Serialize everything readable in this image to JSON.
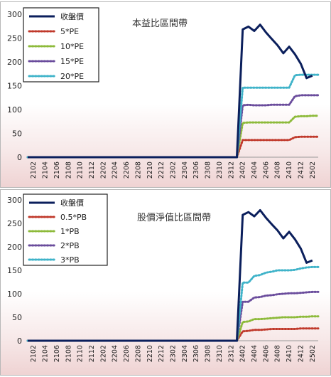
{
  "charts": [
    {
      "id": "top",
      "legend_entries": [
        "收盤價",
        "5*PE",
        "10*PE",
        "15*PE",
        "20*PE"
      ]
    },
    {
      "id": "bottom",
      "legend_entries": [
        "收盤價",
        "0.5*PB",
        "1*PB",
        "2*PB",
        "3*PB"
      ]
    }
  ],
  "chart_data": [
    {
      "type": "line",
      "title": "本益比區間帶",
      "ylim": [
        0,
        300
      ],
      "yticks": [
        0,
        50,
        100,
        150,
        200,
        250,
        300
      ],
      "grid": false,
      "legend_position": "top-left",
      "x_tick_labels": [
        "2102",
        "2104",
        "2106",
        "2108",
        "2110",
        "2112",
        "2202",
        "2204",
        "2206",
        "2208",
        "2210",
        "2212",
        "2302",
        "2304",
        "2306",
        "2308",
        "2310",
        "2312",
        "2402",
        "2404",
        "2406",
        "2408",
        "2410",
        "2412",
        "2502"
      ],
      "x": [
        "2101",
        "2102",
        "2103",
        "2104",
        "2105",
        "2106",
        "2107",
        "2108",
        "2109",
        "2110",
        "2111",
        "2112",
        "2201",
        "2202",
        "2203",
        "2204",
        "2205",
        "2206",
        "2207",
        "2208",
        "2209",
        "2210",
        "2211",
        "2212",
        "2301",
        "2302",
        "2303",
        "2304",
        "2305",
        "2306",
        "2307",
        "2308",
        "2309",
        "2310",
        "2311",
        "2312",
        "2401",
        "2402",
        "2403",
        "2404",
        "2405",
        "2406",
        "2407",
        "2408",
        "2409",
        "2410",
        "2411",
        "2412",
        "2501",
        "2502",
        "2503"
      ],
      "series": [
        {
          "name": "收盤價",
          "color": "#0b1f5c",
          "style": "solid",
          "values": [
            0,
            0,
            0,
            0,
            0,
            0,
            0,
            0,
            0,
            0,
            0,
            0,
            0,
            0,
            0,
            0,
            0,
            0,
            0,
            0,
            0,
            0,
            0,
            0,
            0,
            0,
            0,
            0,
            0,
            0,
            0,
            0,
            0,
            0,
            0,
            0,
            0,
            268,
            274,
            265,
            278,
            262,
            248,
            235,
            218,
            232,
            216,
            196,
            166,
            171,
            null
          ]
        },
        {
          "name": "5*PE",
          "color": "#c0392b",
          "style": "dotted",
          "values": [
            0,
            0,
            0,
            0,
            0,
            0,
            0,
            0,
            0,
            0,
            0,
            0,
            0,
            0,
            0,
            0,
            0,
            0,
            0,
            0,
            0,
            0,
            0,
            0,
            0,
            0,
            0,
            0,
            0,
            0,
            0,
            0,
            0,
            0,
            0,
            0,
            0,
            36,
            36,
            36,
            36,
            36,
            36,
            36,
            36,
            36,
            42,
            43,
            43,
            43,
            43
          ]
        },
        {
          "name": "10*PE",
          "color": "#8dba3a",
          "style": "dotted",
          "values": [
            0,
            0,
            0,
            0,
            0,
            0,
            0,
            0,
            0,
            0,
            0,
            0,
            0,
            0,
            0,
            0,
            0,
            0,
            0,
            0,
            0,
            0,
            0,
            0,
            0,
            0,
            0,
            0,
            0,
            0,
            0,
            0,
            0,
            0,
            0,
            0,
            0,
            72,
            73,
            73,
            73,
            73,
            73,
            73,
            73,
            73,
            85,
            86,
            86,
            87,
            87
          ]
        },
        {
          "name": "15*PE",
          "color": "#6a4c9c",
          "style": "dotted",
          "values": [
            0,
            0,
            0,
            0,
            0,
            0,
            0,
            0,
            0,
            0,
            0,
            0,
            0,
            0,
            0,
            0,
            0,
            0,
            0,
            0,
            0,
            0,
            0,
            0,
            0,
            0,
            0,
            0,
            0,
            0,
            0,
            0,
            0,
            0,
            0,
            0,
            0,
            109,
            110,
            109,
            109,
            109,
            110,
            110,
            110,
            110,
            128,
            130,
            130,
            130,
            130
          ]
        },
        {
          "name": "20*PE",
          "color": "#3fb3c9",
          "style": "dotted",
          "values": [
            0,
            0,
            0,
            0,
            0,
            0,
            0,
            0,
            0,
            0,
            0,
            0,
            0,
            0,
            0,
            0,
            0,
            0,
            0,
            0,
            0,
            0,
            0,
            0,
            0,
            0,
            0,
            0,
            0,
            0,
            0,
            0,
            0,
            0,
            0,
            0,
            0,
            146,
            146,
            146,
            146,
            146,
            146,
            146,
            146,
            146,
            172,
            173,
            173,
            173,
            173
          ]
        }
      ]
    },
    {
      "type": "line",
      "title": "股價淨值比區間帶",
      "ylim": [
        0,
        300
      ],
      "yticks": [
        0,
        50,
        100,
        150,
        200,
        250,
        300
      ],
      "grid": false,
      "legend_position": "top-left",
      "x_tick_labels": [
        "2102",
        "2104",
        "2106",
        "2108",
        "2110",
        "2112",
        "2202",
        "2204",
        "2206",
        "2208",
        "2210",
        "2212",
        "2302",
        "2304",
        "2306",
        "2308",
        "2310",
        "2312",
        "2402",
        "2404",
        "2406",
        "2408",
        "2410",
        "2412",
        "2502"
      ],
      "x": [
        "2101",
        "2102",
        "2103",
        "2104",
        "2105",
        "2106",
        "2107",
        "2108",
        "2109",
        "2110",
        "2111",
        "2112",
        "2201",
        "2202",
        "2203",
        "2204",
        "2205",
        "2206",
        "2207",
        "2208",
        "2209",
        "2210",
        "2211",
        "2212",
        "2301",
        "2302",
        "2303",
        "2304",
        "2305",
        "2306",
        "2307",
        "2308",
        "2309",
        "2310",
        "2311",
        "2312",
        "2401",
        "2402",
        "2403",
        "2404",
        "2405",
        "2406",
        "2407",
        "2408",
        "2409",
        "2410",
        "2411",
        "2412",
        "2501",
        "2502",
        "2503"
      ],
      "series": [
        {
          "name": "收盤價",
          "color": "#0b1f5c",
          "style": "solid",
          "values": [
            0,
            0,
            0,
            0,
            0,
            0,
            0,
            0,
            0,
            0,
            0,
            0,
            0,
            0,
            0,
            0,
            0,
            0,
            0,
            0,
            0,
            0,
            0,
            0,
            0,
            0,
            0,
            0,
            0,
            0,
            0,
            0,
            0,
            0,
            0,
            0,
            0,
            268,
            274,
            265,
            278,
            262,
            248,
            235,
            218,
            232,
            216,
            196,
            166,
            171,
            null
          ]
        },
        {
          "name": "0.5*PB",
          "color": "#c0392b",
          "style": "dotted",
          "values": [
            0,
            0,
            0,
            0,
            0,
            0,
            0,
            0,
            0,
            0,
            0,
            0,
            0,
            0,
            0,
            0,
            0,
            0,
            0,
            0,
            0,
            0,
            0,
            0,
            0,
            0,
            0,
            0,
            0,
            0,
            0,
            0,
            0,
            0,
            0,
            0,
            0,
            20,
            21,
            23,
            23,
            24,
            25,
            25,
            25,
            25,
            25,
            26,
            26,
            26,
            26
          ]
        },
        {
          "name": "1*PB",
          "color": "#8dba3a",
          "style": "dotted",
          "values": [
            0,
            0,
            0,
            0,
            0,
            0,
            0,
            0,
            0,
            0,
            0,
            0,
            0,
            0,
            0,
            0,
            0,
            0,
            0,
            0,
            0,
            0,
            0,
            0,
            0,
            0,
            0,
            0,
            0,
            0,
            0,
            0,
            0,
            0,
            0,
            0,
            0,
            40,
            41,
            46,
            46,
            47,
            48,
            49,
            50,
            50,
            50,
            51,
            51,
            52,
            52
          ]
        },
        {
          "name": "2*PB",
          "color": "#6a4c9c",
          "style": "dotted",
          "values": [
            0,
            0,
            0,
            0,
            0,
            0,
            0,
            0,
            0,
            0,
            0,
            0,
            0,
            0,
            0,
            0,
            0,
            0,
            0,
            0,
            0,
            0,
            0,
            0,
            0,
            0,
            0,
            0,
            0,
            0,
            0,
            0,
            0,
            0,
            0,
            0,
            0,
            83,
            83,
            92,
            93,
            96,
            97,
            99,
            100,
            101,
            101,
            102,
            103,
            104,
            104
          ]
        },
        {
          "name": "3*PB",
          "color": "#3fb3c9",
          "style": "dotted",
          "values": [
            0,
            0,
            0,
            0,
            0,
            0,
            0,
            0,
            0,
            0,
            0,
            0,
            0,
            0,
            0,
            0,
            0,
            0,
            0,
            0,
            0,
            0,
            0,
            0,
            0,
            0,
            0,
            0,
            0,
            0,
            0,
            0,
            0,
            0,
            0,
            0,
            0,
            124,
            124,
            138,
            140,
            145,
            147,
            150,
            150,
            150,
            151,
            154,
            156,
            157,
            157
          ]
        }
      ]
    }
  ]
}
